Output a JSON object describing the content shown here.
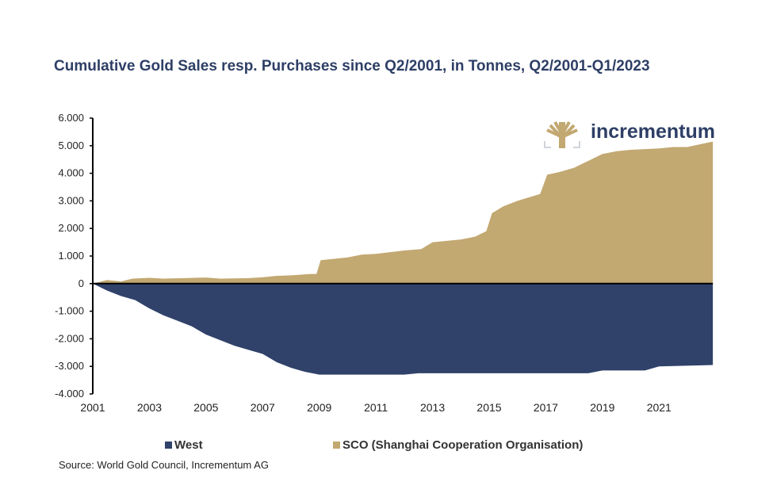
{
  "title": "Cumulative Gold Sales resp. Purchases since Q2/2001, in Tonnes, Q2/2001-Q1/2023",
  "logo": "incrementum",
  "source": "Source: World Gold Council, Incrementum AG",
  "chart_data": {
    "type": "area",
    "title": "Cumulative Gold Sales resp. Purchases since Q2/2001, in Tonnes, Q2/2001-Q1/2023",
    "xlim": [
      2001,
      2023
    ],
    "ylim": [
      -4000,
      6000
    ],
    "yticks": [
      6000,
      5000,
      4000,
      3000,
      2000,
      1000,
      0,
      -1000,
      -2000,
      -3000,
      -4000
    ],
    "ytick_labels": [
      "6.000",
      "5.000",
      "4.000",
      "3.000",
      "2.000",
      "1.000",
      "0",
      "-1.000",
      "-2.000",
      "-3.000",
      "-4.000"
    ],
    "xticks": [
      2001,
      2003,
      2005,
      2007,
      2009,
      2011,
      2013,
      2015,
      2017,
      2019,
      2021
    ],
    "xtick_labels": [
      "2001",
      "2003",
      "2005",
      "2007",
      "2009",
      "2011",
      "2013",
      "2015",
      "2017",
      "2019",
      "2021"
    ],
    "legend_position": "bottom",
    "series": [
      {
        "name": "West",
        "color": "#30426a",
        "x": [
          2001,
          2001.5,
          2002,
          2002.5,
          2003,
          2003.5,
          2004,
          2004.5,
          2005,
          2005.5,
          2006,
          2006.5,
          2007,
          2007.5,
          2008,
          2008.5,
          2009,
          2012,
          2012.5,
          2018,
          2018.5,
          2019,
          2020.5,
          2021,
          2022.9
        ],
        "values": [
          0,
          -250,
          -450,
          -600,
          -900,
          -1150,
          -1350,
          -1550,
          -1850,
          -2050,
          -2250,
          -2400,
          -2550,
          -2850,
          -3050,
          -3200,
          -3300,
          -3300,
          -3250,
          -3250,
          -3250,
          -3150,
          -3150,
          -3000,
          -2950
        ]
      },
      {
        "name": "SCO (Shanghai Cooperation Organisation)",
        "color": "#c2a871",
        "x": [
          2001,
          2001.5,
          2002,
          2002.4,
          2003,
          2003.5,
          2005,
          2005.5,
          2006.5,
          2007,
          2007.5,
          2008,
          2008.7,
          2008.9,
          2009.05,
          2010,
          2010.5,
          2011,
          2012,
          2012.6,
          2013,
          2014,
          2014.5,
          2014.9,
          2015.1,
          2015.5,
          2016,
          2016.8,
          2017.05,
          2017.5,
          2018,
          2018.5,
          2019,
          2019.5,
          2020,
          2021,
          2021.5,
          2022,
          2022.9
        ],
        "values": [
          0,
          130,
          80,
          180,
          210,
          180,
          220,
          180,
          200,
          230,
          280,
          300,
          350,
          350,
          850,
          950,
          1050,
          1080,
          1200,
          1250,
          1500,
          1600,
          1700,
          1900,
          2550,
          2800,
          3000,
          3250,
          3950,
          4050,
          4200,
          4450,
          4700,
          4800,
          4850,
          4900,
          4950,
          4950,
          5150
        ]
      }
    ]
  }
}
